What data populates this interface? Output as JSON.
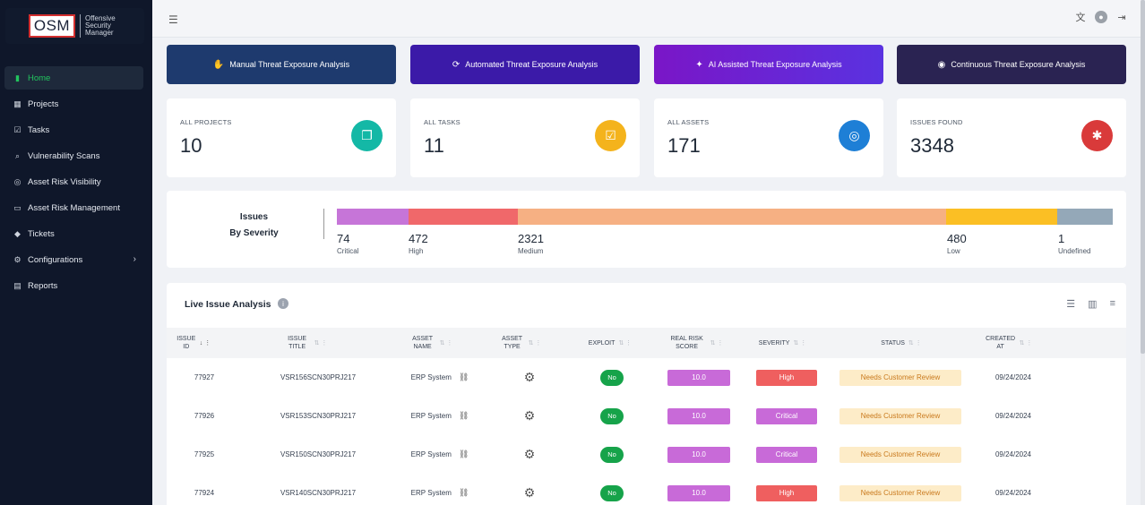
{
  "sidebar": {
    "logo_short": "OSM",
    "logo_long": "Offensive Security Manager",
    "items": [
      {
        "label": "Home",
        "icon": "bar-chart-icon"
      },
      {
        "label": "Projects",
        "icon": "grid-icon"
      },
      {
        "label": "Tasks",
        "icon": "clipboard-icon"
      },
      {
        "label": "Vulnerability Scans",
        "icon": "scan-icon"
      },
      {
        "label": "Asset Risk Visibility",
        "icon": "target-icon"
      },
      {
        "label": "Asset Risk Management",
        "icon": "monitor-icon"
      },
      {
        "label": "Tickets",
        "icon": "tag-icon"
      },
      {
        "label": "Configurations",
        "icon": "config-icon"
      },
      {
        "label": "Reports",
        "icon": "report-icon"
      }
    ]
  },
  "analysis": {
    "manual": "Manual Threat Exposure Analysis",
    "automated": "Automated Threat Exposure Analysis",
    "ai": "AI Assisted Threat Exposure Analysis",
    "continuous": "Continuous Threat Exposure Analysis"
  },
  "stats": {
    "projects": {
      "label": "ALL PROJECTS",
      "value": "10",
      "color": "#14b8a6"
    },
    "tasks": {
      "label": "ALL TASKS",
      "value": "11",
      "color": "#f4b31c"
    },
    "assets": {
      "label": "ALL ASSETS",
      "value": "171",
      "color": "#1e7fd6"
    },
    "issues": {
      "label": "ISSUES FOUND",
      "value": "3348",
      "color": "#d93a3a"
    }
  },
  "severity": {
    "title_line1": "Issues",
    "title_line2": "By Severity",
    "items": [
      {
        "count": "74",
        "name": "Critical",
        "color": "#c675d8"
      },
      {
        "count": "472",
        "name": "High",
        "color": "#f0686a"
      },
      {
        "count": "2321",
        "name": "Medium",
        "color": "#f6b083"
      },
      {
        "count": "480",
        "name": "Low",
        "color": "#fbbf24"
      },
      {
        "count": "1",
        "name": "Undefined",
        "color": "#94a8b8"
      }
    ]
  },
  "table": {
    "title": "Live Issue Analysis",
    "headers": {
      "issue_id": "ISSUE ID",
      "issue_title": "ISSUE TITLE",
      "asset_name": "ASSET NAME",
      "asset_type": "ASSET TYPE",
      "exploit": "EXPLOIT",
      "risk": "REAL RISK SCORE",
      "severity": "SEVERITY",
      "status": "STATUS",
      "created": "CREATED AT"
    },
    "rows": [
      {
        "id": "77927",
        "title": "VSR156SCN30PRJ217",
        "asset": "ERP System",
        "exploit": "No",
        "score": "10.0",
        "severity": "High",
        "sev_color": "#ef5f5f",
        "status": "Needs Customer Review",
        "created": "09/24/2024"
      },
      {
        "id": "77926",
        "title": "VSR153SCN30PRJ217",
        "asset": "ERP System",
        "exploit": "No",
        "score": "10.0",
        "severity": "Critical",
        "sev_color": "#c86ad8",
        "status": "Needs Customer Review",
        "created": "09/24/2024"
      },
      {
        "id": "77925",
        "title": "VSR150SCN30PRJ217",
        "asset": "ERP System",
        "exploit": "No",
        "score": "10.0",
        "severity": "Critical",
        "sev_color": "#c86ad8",
        "status": "Needs Customer Review",
        "created": "09/24/2024"
      },
      {
        "id": "77924",
        "title": "VSR140SCN30PRJ217",
        "asset": "ERP System",
        "exploit": "No",
        "score": "10.0",
        "severity": "High",
        "sev_color": "#ef5f5f",
        "status": "Needs Customer Review",
        "created": "09/24/2024"
      }
    ]
  }
}
